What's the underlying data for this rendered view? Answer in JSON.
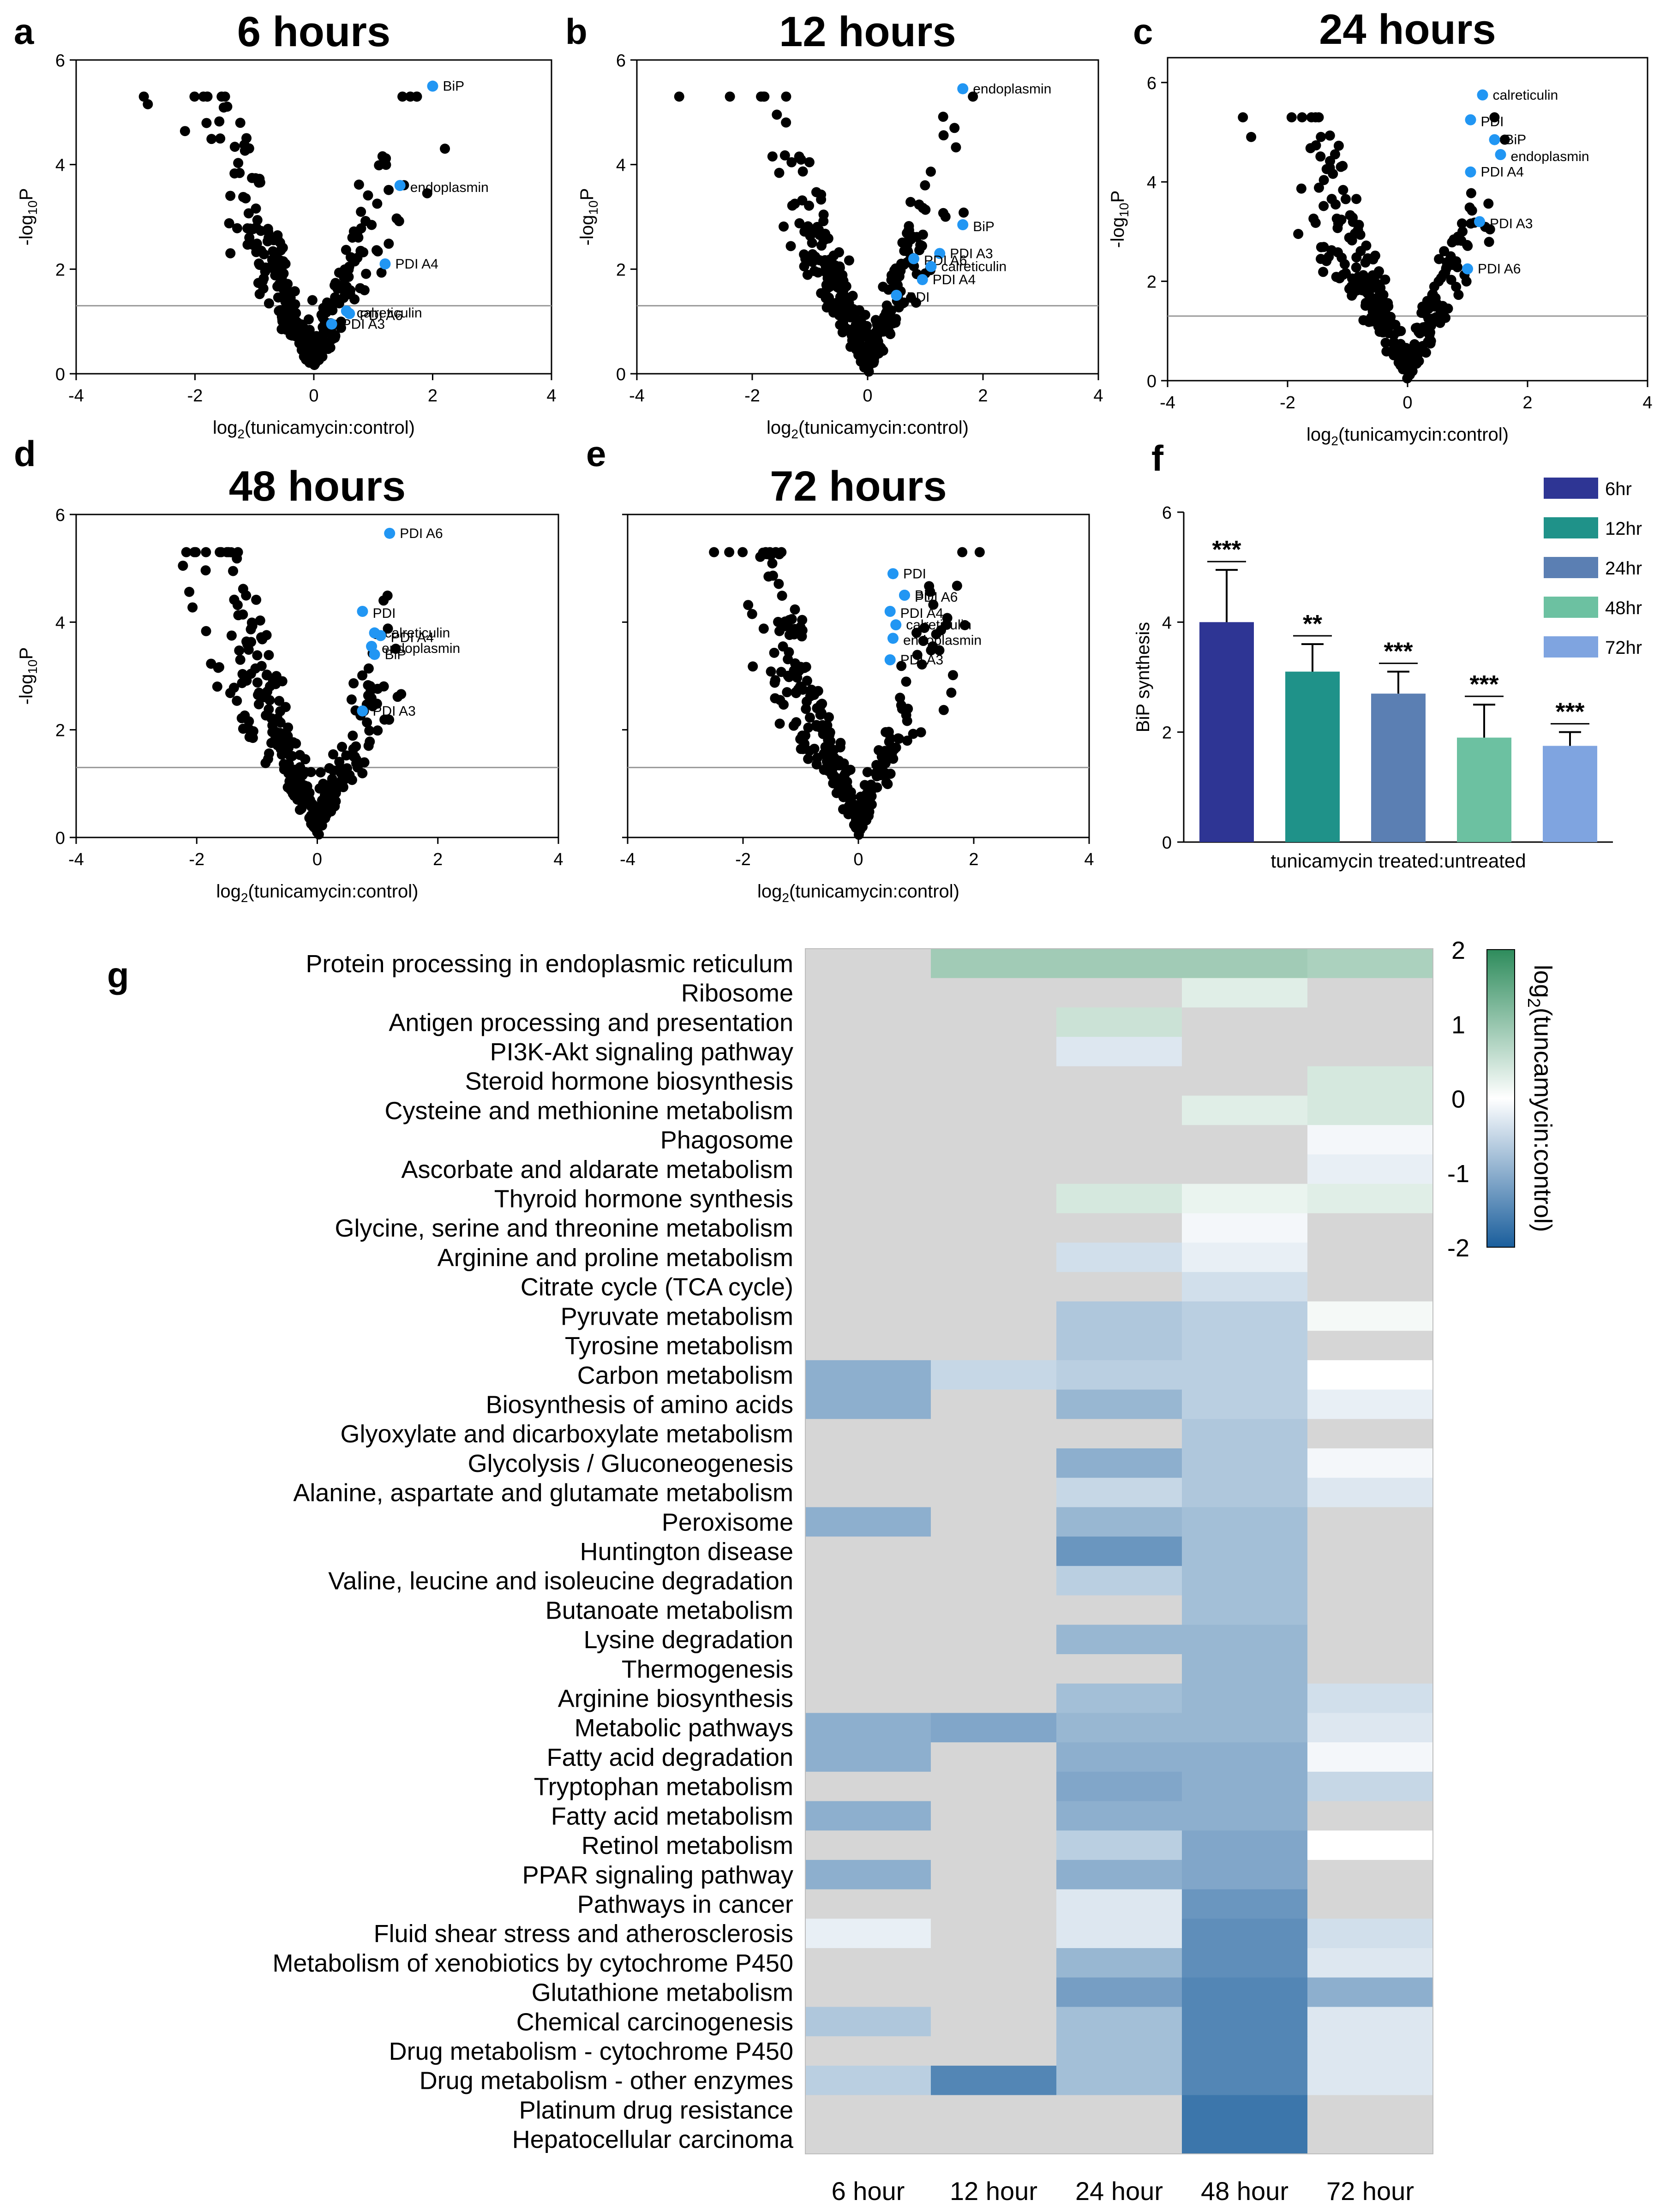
{
  "chart_data": [
    {
      "type": "scatter",
      "panel": "a",
      "title": "6 hours",
      "xlabel": "log2(tunicamycin:control)",
      "ylabel": "-log10P",
      "xlim": [
        -4,
        4
      ],
      "ylim": [
        0,
        6
      ],
      "xticks": [
        -4,
        -2,
        0,
        2,
        4
      ],
      "yticks": [
        0,
        2,
        4,
        6
      ],
      "threshold": 1.3,
      "highlighted": [
        {
          "label": "BiP",
          "x": 2.0,
          "y": 5.5
        },
        {
          "label": "endoplasmin",
          "x": 1.45,
          "y": 3.6
        },
        {
          "label": "PDI A4",
          "x": 1.2,
          "y": 2.1
        },
        {
          "label": "calreticulin",
          "x": 0.55,
          "y": 1.2
        },
        {
          "label": "PDI A3",
          "x": 0.3,
          "y": 0.95
        },
        {
          "label": "PDI A6",
          "x": 0.6,
          "y": 1.15
        }
      ]
    },
    {
      "type": "scatter",
      "panel": "b",
      "title": "12 hours",
      "xlabel": "log2(tunicamycin:control)",
      "ylabel": "-log10P",
      "xlim": [
        -4,
        4
      ],
      "ylim": [
        0,
        6
      ],
      "xticks": [
        -4,
        -2,
        0,
        2,
        4
      ],
      "yticks": [
        0,
        2,
        4,
        6
      ],
      "threshold": 1.3,
      "highlighted": [
        {
          "label": "endoplasmin",
          "x": 1.65,
          "y": 5.45
        },
        {
          "label": "BiP",
          "x": 1.65,
          "y": 2.85
        },
        {
          "label": "PDI A3",
          "x": 1.25,
          "y": 2.3
        },
        {
          "label": "PDI A6",
          "x": 0.8,
          "y": 2.2
        },
        {
          "label": "calreticulin",
          "x": 1.1,
          "y": 2.05
        },
        {
          "label": "PDI",
          "x": 0.5,
          "y": 1.5
        },
        {
          "label": "PDI A4",
          "x": 0.95,
          "y": 1.8
        }
      ]
    },
    {
      "type": "scatter",
      "panel": "c",
      "title": "24 hours",
      "xlabel": "log2(tunicamycin:control)",
      "ylabel": "-log10P",
      "xlim": [
        -4,
        4
      ],
      "ylim": [
        0,
        6.5
      ],
      "xticks": [
        -4,
        -2,
        0,
        2,
        4
      ],
      "yticks": [
        0,
        2,
        4,
        6
      ],
      "threshold": 1.3,
      "highlighted": [
        {
          "label": "calreticulin",
          "x": 1.25,
          "y": 5.75
        },
        {
          "label": "PDI",
          "x": 1.05,
          "y": 5.25
        },
        {
          "label": "BiP",
          "x": 1.45,
          "y": 4.85
        },
        {
          "label": "endoplasmin",
          "x": 1.55,
          "y": 4.55
        },
        {
          "label": "PDI A4",
          "x": 1.05,
          "y": 4.2
        },
        {
          "label": "PDI A3",
          "x": 1.2,
          "y": 3.2
        },
        {
          "label": "PDI A6",
          "x": 1.0,
          "y": 2.25
        }
      ]
    },
    {
      "type": "scatter",
      "panel": "d",
      "title": "48 hours",
      "xlabel": "log2(tunicamycin:control)",
      "ylabel": "-log10P",
      "xlim": [
        -4,
        4
      ],
      "ylim": [
        0,
        6
      ],
      "xticks": [
        -4,
        -2,
        0,
        2,
        4
      ],
      "yticks": [
        0,
        2,
        4,
        6
      ],
      "threshold": 1.3,
      "highlighted": [
        {
          "label": "PDI A6",
          "x": 1.2,
          "y": 5.65
        },
        {
          "label": "PDI",
          "x": 0.75,
          "y": 4.2
        },
        {
          "label": "calreticulin",
          "x": 0.95,
          "y": 3.8
        },
        {
          "label": "PDI A4",
          "x": 1.05,
          "y": 3.75
        },
        {
          "label": "BiP",
          "x": 0.95,
          "y": 3.4
        },
        {
          "label": "endoplasmin",
          "x": 0.9,
          "y": 3.55
        },
        {
          "label": "PDI A3",
          "x": 0.75,
          "y": 2.35
        }
      ]
    },
    {
      "type": "scatter",
      "panel": "e",
      "title": "72 hours",
      "xlabel": "log2(tunicamycin:control)",
      "ylabel": "",
      "xlim": [
        -4,
        4
      ],
      "ylim": [
        0,
        6
      ],
      "xticks": [
        -4,
        -2,
        0,
        2,
        4
      ],
      "yticks": [],
      "threshold": 1.3,
      "highlighted": [
        {
          "label": "PDI",
          "x": 0.6,
          "y": 4.9
        },
        {
          "label": "PDI A6",
          "x": 0.8,
          "y": 4.5
        },
        {
          "label": "BiP",
          "x": 0.8,
          "y": 4.5
        },
        {
          "label": "PDI A4",
          "x": 0.55,
          "y": 4.2
        },
        {
          "label": "calreticulin",
          "x": 0.65,
          "y": 3.95
        },
        {
          "label": "endoplasmin",
          "x": 0.6,
          "y": 3.7
        },
        {
          "label": "PDI A3",
          "x": 0.55,
          "y": 3.3
        }
      ]
    },
    {
      "type": "bar",
      "panel": "f",
      "title": "",
      "xlabel": "tunicamycin treated:untreated",
      "ylabel": "BiP synthesis",
      "ylim": [
        0,
        6
      ],
      "yticks": [
        0,
        2,
        4,
        6
      ],
      "categories": [
        "6hr",
        "12hr",
        "24hr",
        "48hr",
        "72hr"
      ],
      "values": [
        4.0,
        3.1,
        2.7,
        1.9,
        1.75
      ],
      "errors": [
        0.95,
        0.5,
        0.4,
        0.6,
        0.25
      ],
      "significance": [
        "***",
        "**",
        "***",
        "***",
        "***"
      ],
      "colors": [
        "#2e3594",
        "#1f9289",
        "#5b7fb3",
        "#6cc1a1",
        "#7fa4e0"
      ]
    },
    {
      "type": "heatmap",
      "panel": "g",
      "colorbar_label": "log2(tuncamycin:control)",
      "colorbar_ticks": [
        2,
        1,
        0,
        -1,
        -2
      ],
      "vmin": -2,
      "vmax": 2,
      "columns": [
        "6 hour",
        "12 hour",
        "24 hour",
        "48 hour",
        "72 hour"
      ],
      "rows": [
        "Protein processing in endoplasmic reticulum",
        "Ribosome",
        "Antigen processing and presentation",
        "PI3K-Akt signaling pathway",
        "Steroid hormone biosynthesis",
        "Cysteine and methionine metabolism",
        "Phagosome",
        "Ascorbate and aldarate metabolism",
        "Thyroid hormone synthesis",
        "Glycine, serine and threonine metabolism",
        "Arginine and proline metabolism",
        "Citrate cycle (TCA cycle)",
        "Pyruvate metabolism",
        "Tyrosine metabolism",
        "Carbon metabolism",
        "Biosynthesis of amino acids",
        "Glyoxylate and dicarboxylate metabolism",
        "Glycolysis / Gluconeogenesis",
        "Alanine, aspartate and glutamate metabolism",
        "Peroxisome",
        "Huntington disease",
        "Valine, leucine and isoleucine degradation",
        "Butanoate metabolism",
        "Lysine degradation",
        "Thermogenesis",
        "Arginine biosynthesis",
        "Metabolic pathways",
        "Fatty acid degradation",
        "Tryptophan metabolism",
        "Fatty acid metabolism",
        "Retinol metabolism",
        "PPAR signaling pathway",
        "Pathways in cancer",
        "Fluid shear stress and atherosclerosis",
        "Metabolism of xenobiotics by cytochrome P450",
        "Glutathione metabolism",
        "Chemical carcinogenesis",
        "Drug metabolism - cytochrome P450",
        "Drug metabolism - other enzymes",
        "Platinum drug resistance",
        "Hepatocellular carcinoma"
      ],
      "values": [
        [
          null,
          0.9,
          0.9,
          0.9,
          0.8
        ],
        [
          null,
          null,
          null,
          0.3,
          null
        ],
        [
          null,
          null,
          0.5,
          null,
          null
        ],
        [
          null,
          null,
          -0.3,
          null,
          null
        ],
        [
          null,
          null,
          null,
          null,
          0.4
        ],
        [
          null,
          null,
          null,
          0.3,
          0.4
        ],
        [
          null,
          null,
          null,
          null,
          -0.1
        ],
        [
          null,
          null,
          null,
          null,
          -0.2
        ],
        [
          null,
          null,
          0.4,
          0.2,
          0.3
        ],
        [
          null,
          null,
          null,
          -0.1,
          null
        ],
        [
          null,
          null,
          -0.4,
          -0.2,
          null
        ],
        [
          null,
          null,
          null,
          -0.4,
          null
        ],
        [
          null,
          null,
          -0.7,
          -0.6,
          0.1
        ],
        [
          null,
          null,
          -0.7,
          -0.6,
          null
        ],
        [
          -1.0,
          -0.5,
          -0.6,
          -0.6,
          0.0
        ],
        [
          -1.0,
          null,
          -0.9,
          -0.6,
          -0.2
        ],
        [
          null,
          null,
          null,
          -0.7,
          null
        ],
        [
          null,
          null,
          -1.0,
          -0.7,
          -0.1
        ],
        [
          null,
          null,
          -0.5,
          -0.7,
          -0.3
        ],
        [
          -1.0,
          null,
          -0.9,
          -0.8,
          null
        ],
        [
          null,
          null,
          -1.3,
          -0.8,
          null
        ],
        [
          null,
          null,
          -0.6,
          -0.8,
          null
        ],
        [
          null,
          null,
          null,
          -0.8,
          null
        ],
        [
          null,
          null,
          -0.9,
          -0.9,
          null
        ],
        [
          null,
          null,
          null,
          -0.9,
          null
        ],
        [
          null,
          null,
          -0.8,
          -0.9,
          -0.4
        ],
        [
          -1.0,
          -1.1,
          -0.9,
          -0.9,
          -0.3
        ],
        [
          -1.0,
          null,
          -1.0,
          -1.0,
          -0.1
        ],
        [
          null,
          null,
          -1.1,
          -1.0,
          -0.5
        ],
        [
          -1.0,
          null,
          -1.0,
          -1.0,
          null
        ],
        [
          null,
          null,
          -0.6,
          -1.1,
          0.0
        ],
        [
          -1.0,
          null,
          -1.0,
          -1.1,
          null
        ],
        [
          null,
          null,
          -0.3,
          -1.3,
          null
        ],
        [
          -0.2,
          null,
          -0.3,
          -1.4,
          -0.4
        ],
        [
          null,
          null,
          -0.9,
          -1.4,
          -0.3
        ],
        [
          null,
          null,
          -1.2,
          -1.5,
          -1.0
        ],
        [
          -0.7,
          null,
          -0.8,
          -1.5,
          -0.3
        ],
        [
          null,
          null,
          -0.8,
          -1.5,
          -0.3
        ],
        [
          -0.6,
          -1.5,
          -0.8,
          -1.5,
          -0.3
        ],
        [
          null,
          null,
          null,
          -1.7,
          null
        ],
        [
          null,
          null,
          null,
          -1.7,
          null
        ]
      ]
    }
  ],
  "panel_letters": [
    "a",
    "b",
    "c",
    "d",
    "e",
    "f",
    "g"
  ]
}
